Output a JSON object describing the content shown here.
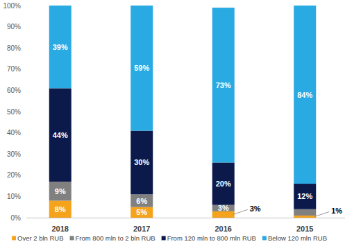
{
  "chart_data": {
    "type": "bar",
    "stacked": true,
    "data_labels": true,
    "legend": "bottom",
    "grid": false,
    "categories": [
      "2018",
      "2017",
      "2016",
      "2015"
    ],
    "ylim": [
      0,
      100
    ],
    "yticks": [
      {
        "value": 0,
        "label": "0%"
      },
      {
        "value": 10,
        "label": "10%"
      },
      {
        "value": 20,
        "label": "20%"
      },
      {
        "value": 30,
        "label": "30%"
      },
      {
        "value": 40,
        "label": "40%"
      },
      {
        "value": 50,
        "label": "50%"
      },
      {
        "value": 60,
        "label": "60%"
      },
      {
        "value": 70,
        "label": "70%"
      },
      {
        "value": 80,
        "label": "80%"
      },
      {
        "value": 90,
        "label": "90%"
      },
      {
        "value": 100,
        "label": "100%"
      }
    ],
    "series": [
      {
        "name": "Over 2 bln RUB",
        "color": "#f5a31a",
        "values": [
          8,
          5,
          3,
          1
        ],
        "value_labels": [
          "8%",
          "5%",
          "3%",
          "1%"
        ]
      },
      {
        "name": "From 800 mln to 2 bln RUB",
        "color": "#808080",
        "values": [
          9,
          6,
          3,
          3
        ],
        "value_labels": [
          "9%",
          "6%",
          "3%",
          null
        ]
      },
      {
        "name": "From 120 mln to 800 mln RUB",
        "color": "#0c1a4b",
        "values": [
          44,
          30,
          20,
          12
        ],
        "value_labels": [
          "44%",
          "30%",
          "20%",
          "12%"
        ]
      },
      {
        "name": "Below 120 mln RUB",
        "color": "#2aaae2",
        "values": [
          39,
          59,
          73,
          84
        ],
        "value_labels": [
          "39%",
          "59%",
          "73%",
          "84%"
        ]
      }
    ]
  }
}
